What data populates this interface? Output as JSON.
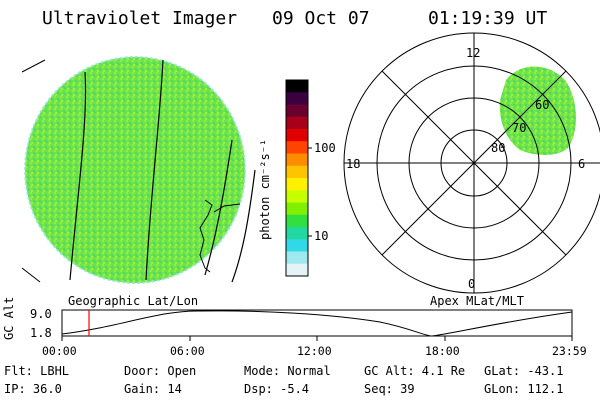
{
  "header": {
    "instrument": "Ultraviolet Imager",
    "date": "09 Oct 07",
    "time": "01:19:39 UT"
  },
  "colorbar": {
    "label": "photon cm⁻²s⁻¹",
    "ticks": [
      "100",
      "10"
    ],
    "colors": [
      "#000000",
      "#3a0040",
      "#6a0030",
      "#a8001a",
      "#e00000",
      "#ff4400",
      "#ff8c00",
      "#ffc400",
      "#fff000",
      "#c8ff00",
      "#80f000",
      "#30e040",
      "#20d8a0",
      "#30d8e8",
      "#9ee8f0",
      "#e4f4f6"
    ]
  },
  "left_panel": {
    "caption": "Geographic Lat/Lon",
    "fill_color": "#6ee34a"
  },
  "right_panel": {
    "caption": "Apex MLat/MLT",
    "mlt_labels": {
      "top": "12",
      "left": "18",
      "right": "6",
      "bottom": "0"
    },
    "lat_labels": [
      "60",
      "70",
      "80"
    ],
    "fill_color": "#6ee34a"
  },
  "altitude_plot": {
    "ylabel": "GC Alt",
    "yticks": [
      "9.0",
      "1.8"
    ],
    "xticks": [
      "00:00",
      "06:00",
      "12:00",
      "18:00",
      "23:59"
    ],
    "current_marker_color": "#ff0000"
  },
  "info": {
    "flt": "Flt: LBHL",
    "ip": "IP: 36.0",
    "door": "Door: Open",
    "gain": "Gain: 14",
    "mode": "Mode: Normal",
    "dsp": "Dsp:   -5.4",
    "gcalt": "GC Alt: 4.1 Re",
    "seq": "Seq: 39",
    "glat": "GLat: -43.1",
    "glon": "GLon: 112.1"
  }
}
